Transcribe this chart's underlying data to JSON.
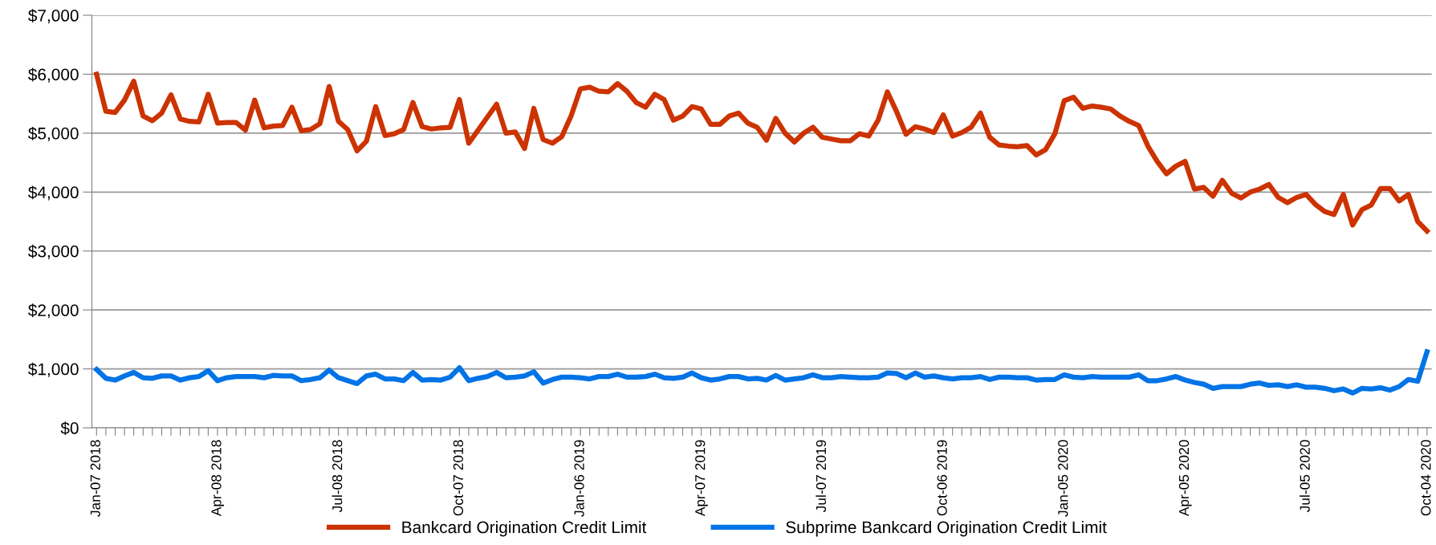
{
  "chart_data": {
    "type": "line",
    "categories": [
      "Jan-07 2018",
      null,
      null,
      null,
      null,
      null,
      null,
      null,
      null,
      null,
      null,
      null,
      null,
      "Apr-08 2018",
      null,
      null,
      null,
      null,
      null,
      null,
      null,
      null,
      null,
      null,
      null,
      null,
      "Jul-08 2018",
      null,
      null,
      null,
      null,
      null,
      null,
      null,
      null,
      null,
      null,
      null,
      null,
      "Oct-07 2018",
      null,
      null,
      null,
      null,
      null,
      null,
      null,
      null,
      null,
      null,
      null,
      null,
      "Jan-06 2019",
      null,
      null,
      null,
      null,
      null,
      null,
      null,
      null,
      null,
      null,
      null,
      null,
      "Apr-07 2019",
      null,
      null,
      null,
      null,
      null,
      null,
      null,
      null,
      null,
      null,
      null,
      null,
      "Jul-07 2019",
      null,
      null,
      null,
      null,
      null,
      null,
      null,
      null,
      null,
      null,
      null,
      null,
      "Oct-06 2019",
      null,
      null,
      null,
      null,
      null,
      null,
      null,
      null,
      null,
      null,
      null,
      null,
      "Jan-05 2020",
      null,
      null,
      null,
      null,
      null,
      null,
      null,
      null,
      null,
      null,
      null,
      null,
      "Apr-05 2020",
      null,
      null,
      null,
      null,
      null,
      null,
      null,
      null,
      null,
      null,
      null,
      null,
      "Jul-05 2020",
      null,
      null,
      null,
      null,
      null,
      null,
      null,
      null,
      null,
      null,
      null,
      null,
      "Oct-04 2020"
    ],
    "series": [
      {
        "name": "Bankcard Origination Credit Limit",
        "color": "#cc3300",
        "values": [
          6000,
          5370,
          5350,
          5560,
          5880,
          5290,
          5210,
          5340,
          5650,
          5240,
          5200,
          5190,
          5660,
          5170,
          5180,
          5180,
          5050,
          5560,
          5090,
          5120,
          5130,
          5440,
          5040,
          5060,
          5160,
          5790,
          5200,
          5060,
          4700,
          4860,
          5450,
          4960,
          4990,
          5060,
          5520,
          5110,
          5070,
          5090,
          5100,
          5570,
          4830,
          5050,
          5270,
          5490,
          5000,
          5020,
          4740,
          5420,
          4890,
          4830,
          4940,
          5290,
          5750,
          5780,
          5710,
          5700,
          5840,
          5710,
          5520,
          5440,
          5660,
          5570,
          5220,
          5290,
          5450,
          5410,
          5150,
          5150,
          5290,
          5340,
          5170,
          5100,
          4880,
          5250,
          5000,
          4850,
          5000,
          5100,
          4930,
          4900,
          4870,
          4870,
          4990,
          4950,
          5220,
          5700,
          5360,
          4980,
          5110,
          5070,
          5010,
          5310,
          4950,
          5010,
          5100,
          5340,
          4930,
          4800,
          4780,
          4770,
          4790,
          4630,
          4720,
          4990,
          5550,
          5610,
          5420,
          5460,
          5440,
          5410,
          5290,
          5200,
          5130,
          4780,
          4520,
          4310,
          4440,
          4520,
          4050,
          4080,
          3930,
          4200,
          3980,
          3900,
          4000,
          4050,
          4130,
          3910,
          3820,
          3910,
          3960,
          3790,
          3670,
          3620,
          3960,
          3440,
          3700,
          3780,
          4060,
          4060,
          3850,
          3960,
          3500,
          3340
        ]
      },
      {
        "name": "Subprime Bankcard Origination Credit Limit",
        "color": "#0073e6",
        "values": [
          990,
          840,
          810,
          880,
          940,
          850,
          840,
          880,
          880,
          810,
          850,
          870,
          970,
          800,
          850,
          870,
          870,
          870,
          850,
          890,
          880,
          880,
          800,
          820,
          850,
          980,
          850,
          800,
          750,
          880,
          910,
          830,
          830,
          800,
          940,
          810,
          820,
          810,
          860,
          1020,
          800,
          840,
          870,
          940,
          850,
          860,
          880,
          950,
          760,
          820,
          860,
          860,
          850,
          830,
          870,
          870,
          910,
          860,
          860,
          870,
          910,
          850,
          840,
          860,
          930,
          850,
          810,
          830,
          870,
          870,
          830,
          840,
          810,
          890,
          810,
          830,
          850,
          900,
          850,
          850,
          870,
          860,
          850,
          850,
          860,
          930,
          920,
          850,
          930,
          860,
          880,
          850,
          830,
          850,
          850,
          870,
          820,
          860,
          860,
          850,
          850,
          810,
          820,
          820,
          900,
          860,
          850,
          870,
          860,
          860,
          860,
          860,
          900,
          800,
          800,
          830,
          870,
          810,
          770,
          740,
          670,
          700,
          700,
          700,
          740,
          760,
          720,
          730,
          700,
          730,
          690,
          690,
          670,
          630,
          660,
          590,
          670,
          660,
          680,
          640,
          700,
          820,
          790,
          1290
        ]
      }
    ],
    "ylim": [
      0,
      7000
    ],
    "yticks": [
      {
        "value": 0,
        "label": "$0"
      },
      {
        "value": 1000,
        "label": "$1,000"
      },
      {
        "value": 2000,
        "label": "$2,000"
      },
      {
        "value": 3000,
        "label": "$3,000"
      },
      {
        "value": 4000,
        "label": "$4,000"
      },
      {
        "value": 5000,
        "label": "$5,000"
      },
      {
        "value": 6000,
        "label": "$6,000"
      },
      {
        "value": 7000,
        "label": "$7,000"
      }
    ],
    "grid": "y",
    "legend": "bottom",
    "marker": "none",
    "line_style": "solid"
  }
}
